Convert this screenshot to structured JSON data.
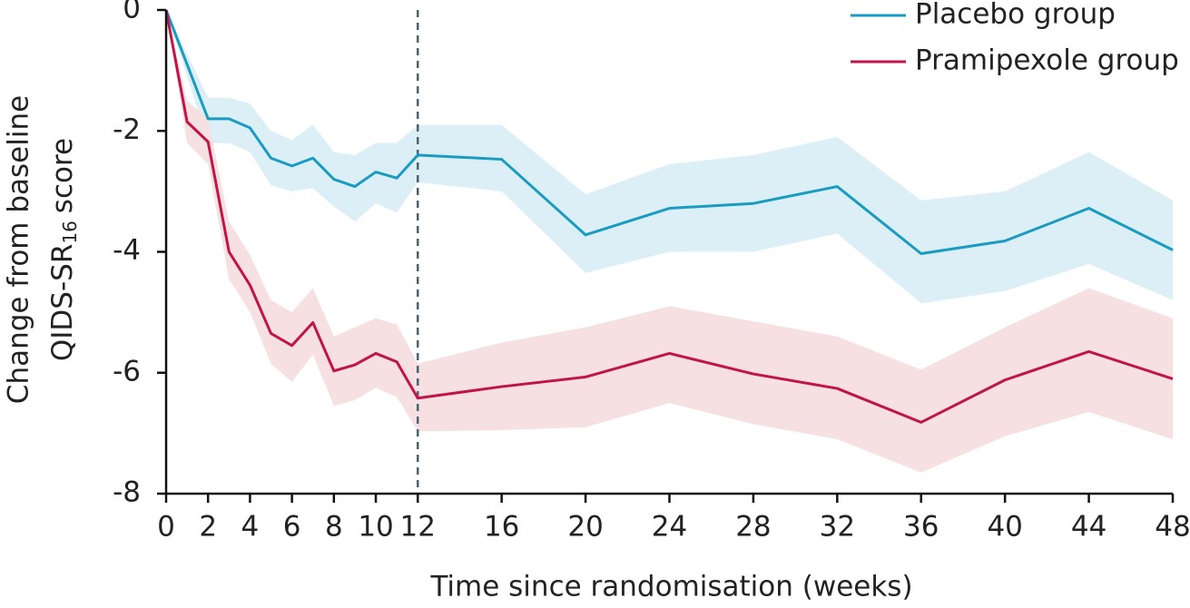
{
  "chart_data": {
    "type": "line",
    "x_label": "Time since randomisation (weeks)",
    "y_label": [
      "Change from baseline",
      "QIDS-SR",
      "16",
      "score"
    ],
    "xlim": [
      0,
      48
    ],
    "xticks": [
      0,
      2,
      4,
      6,
      8,
      10,
      12,
      16,
      20,
      24,
      28,
      32,
      36,
      40,
      44,
      48
    ],
    "ylim": [
      -8,
      0
    ],
    "yticks": [
      0,
      -2,
      -4,
      -6,
      -8
    ],
    "reference_line_x": 12,
    "legend": "top-right",
    "series": [
      {
        "name": "Placebo group",
        "color": "#1a9bc1",
        "band_color": "#dceff7",
        "x": [
          0,
          2,
          3,
          4,
          5,
          6,
          7,
          8,
          9,
          10,
          11,
          12,
          16,
          20,
          24,
          28,
          32,
          36,
          40,
          44,
          48
        ],
        "values": [
          0,
          -1.8,
          -1.8,
          -1.95,
          -2.45,
          -2.58,
          -2.45,
          -2.8,
          -2.92,
          -2.68,
          -2.78,
          -2.4,
          -2.47,
          -3.72,
          -3.28,
          -3.2,
          -2.92,
          -4.03,
          -3.82,
          -3.28,
          -3.97
        ],
        "upper": [
          0,
          -1.45,
          -1.45,
          -1.55,
          -2.0,
          -2.15,
          -1.9,
          -2.35,
          -2.4,
          -2.2,
          -2.2,
          -1.9,
          -1.9,
          -3.05,
          -2.55,
          -2.4,
          -2.1,
          -3.15,
          -3.0,
          -2.35,
          -3.15
        ],
        "lower": [
          0,
          -2.2,
          -2.2,
          -2.35,
          -2.9,
          -3.0,
          -2.95,
          -3.25,
          -3.5,
          -3.2,
          -3.35,
          -2.85,
          -3.0,
          -4.35,
          -4.0,
          -4.0,
          -3.7,
          -4.85,
          -4.65,
          -4.2,
          -4.8
        ]
      },
      {
        "name": "Pramipexole group",
        "color": "#c0144a",
        "band_color": "#f6e0e1",
        "x": [
          0,
          1,
          2,
          3,
          4,
          5,
          6,
          7,
          8,
          9,
          10,
          11,
          12,
          16,
          20,
          24,
          28,
          32,
          36,
          40,
          44,
          48
        ],
        "values": [
          0,
          -1.85,
          -2.18,
          -4.0,
          -4.55,
          -5.35,
          -5.55,
          -5.17,
          -5.97,
          -5.87,
          -5.68,
          -5.82,
          -6.42,
          -6.23,
          -6.07,
          -5.68,
          -6.02,
          -6.26,
          -6.82,
          -6.12,
          -5.65,
          -6.1
        ],
        "upper": [
          0,
          -1.5,
          -1.8,
          -3.5,
          -4.05,
          -4.8,
          -5.0,
          -4.6,
          -5.4,
          -5.25,
          -5.1,
          -5.2,
          -5.85,
          -5.5,
          -5.25,
          -4.9,
          -5.15,
          -5.4,
          -5.95,
          -5.25,
          -4.6,
          -5.1
        ],
        "lower": [
          0,
          -2.2,
          -2.55,
          -4.45,
          -5.0,
          -5.85,
          -6.15,
          -5.7,
          -6.55,
          -6.45,
          -6.25,
          -6.4,
          -6.97,
          -6.95,
          -6.9,
          -6.5,
          -6.85,
          -7.1,
          -7.65,
          -7.05,
          -6.65,
          -7.1
        ]
      }
    ]
  }
}
